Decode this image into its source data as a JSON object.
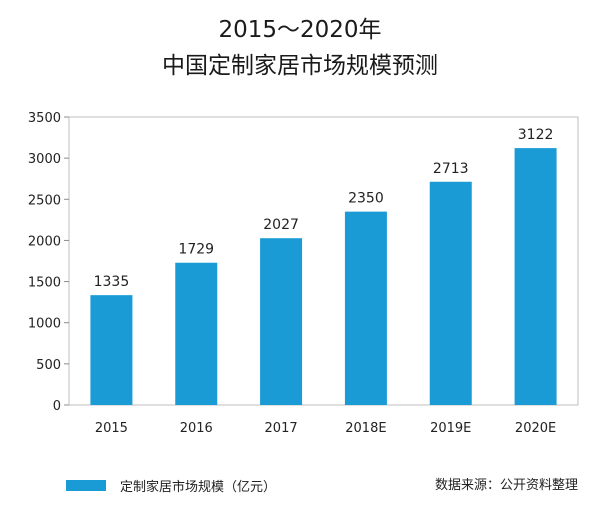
{
  "chart_data": {
    "type": "bar",
    "title": "2015～2020年",
    "subtitle": "中国定制家居市场规模预测",
    "categories": [
      "2015",
      "2016",
      "2017",
      "2018E",
      "2019E",
      "2020E"
    ],
    "series": [
      {
        "name": "定制家居市场规模（亿元）",
        "values": [
          1335,
          1729,
          2027,
          2350,
          2713,
          3122
        ]
      }
    ],
    "ylim": [
      0,
      3500
    ],
    "yticks": [
      "0",
      "500",
      "1000",
      "1500",
      "2000",
      "2500",
      "3000",
      "3500"
    ],
    "grid": false,
    "legend_position": "bottom-left",
    "data_labels": true,
    "bar_color": "#1b9bd6"
  },
  "legend": {
    "label": "定制家居市场规模（亿元）"
  },
  "source": "数据来源：公开资料整理"
}
